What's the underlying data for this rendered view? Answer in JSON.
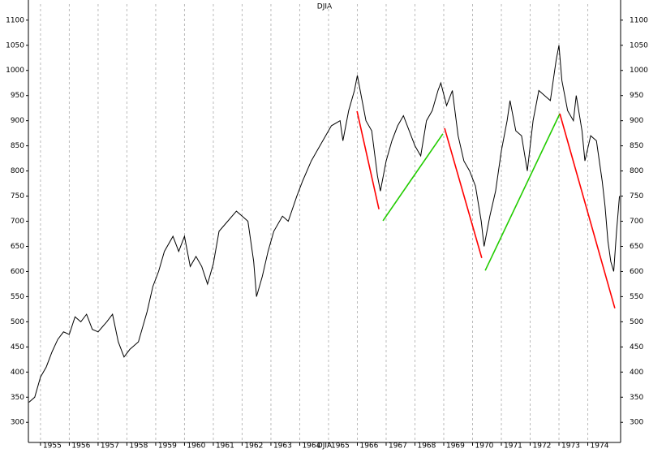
{
  "chart_data": {
    "type": "line",
    "title": "DJIA",
    "xlabel": "DJIA",
    "x": [
      1954.6,
      1954.8,
      1955.0,
      1955.2,
      1955.4,
      1955.6,
      1955.8,
      1956.0,
      1956.2,
      1956.4,
      1956.6,
      1956.8,
      1957.0,
      1957.3,
      1957.5,
      1957.7,
      1957.9,
      1958.1,
      1958.4,
      1958.7,
      1958.9,
      1959.1,
      1959.3,
      1959.6,
      1959.8,
      1960.0,
      1960.2,
      1960.4,
      1960.6,
      1960.8,
      1961.0,
      1961.2,
      1961.5,
      1961.8,
      1962.0,
      1962.2,
      1962.4,
      1962.5,
      1962.7,
      1962.9,
      1963.1,
      1963.4,
      1963.6,
      1963.9,
      1964.1,
      1964.4,
      1964.6,
      1964.9,
      1965.1,
      1965.4,
      1965.5,
      1965.7,
      1965.9,
      1966.0,
      1966.1,
      1966.3,
      1966.5,
      1966.7,
      1966.8,
      1967.0,
      1967.2,
      1967.4,
      1967.6,
      1967.8,
      1968.0,
      1968.2,
      1968.4,
      1968.6,
      1968.8,
      1968.9,
      1969.1,
      1969.3,
      1969.5,
      1969.7,
      1969.9,
      1970.1,
      1970.3,
      1970.4,
      1970.6,
      1970.8,
      1971.0,
      1971.2,
      1971.3,
      1971.5,
      1971.7,
      1971.9,
      1972.1,
      1972.3,
      1972.5,
      1972.7,
      1972.9,
      1973.0,
      1973.1,
      1973.3,
      1973.5,
      1973.6,
      1973.8,
      1973.9,
      1974.1,
      1974.3,
      1974.5,
      1974.6,
      1974.7,
      1974.8,
      1974.9,
      1975.0,
      1975.1
    ],
    "series": [
      {
        "name": "DJIA",
        "color": "#000000",
        "values": [
          340,
          350,
          390,
          410,
          440,
          465,
          480,
          475,
          510,
          500,
          515,
          485,
          480,
          500,
          515,
          460,
          430,
          445,
          460,
          520,
          570,
          600,
          640,
          670,
          640,
          670,
          610,
          630,
          610,
          575,
          615,
          680,
          700,
          720,
          710,
          700,
          620,
          550,
          590,
          640,
          680,
          710,
          700,
          750,
          780,
          820,
          840,
          870,
          890,
          900,
          860,
          920,
          960,
          990,
          960,
          900,
          880,
          790,
          760,
          820,
          860,
          890,
          910,
          880,
          850,
          830,
          900,
          920,
          960,
          975,
          930,
          960,
          870,
          820,
          800,
          770,
          700,
          650,
          710,
          760,
          840,
          900,
          940,
          880,
          870,
          800,
          900,
          960,
          950,
          940,
          1020,
          1050,
          980,
          920,
          900,
          950,
          880,
          820,
          870,
          860,
          780,
          730,
          660,
          620,
          600,
          680,
          750
        ]
      }
    ],
    "trend_lines": [
      {
        "color": "#ff0000",
        "x": [
          1965.99,
          1966.75
        ],
        "values": [
          919,
          724
        ]
      },
      {
        "color": "#22cc00",
        "x": [
          1966.89,
          1968.97
        ],
        "values": [
          701,
          874
        ]
      },
      {
        "color": "#ff0000",
        "x": [
          1969.03,
          1970.32
        ],
        "values": [
          885,
          627
        ]
      },
      {
        "color": "#22cc00",
        "x": [
          1970.44,
          1973.03
        ],
        "values": [
          602,
          914
        ]
      },
      {
        "color": "#ff0000",
        "x": [
          1973.03,
          1974.94
        ],
        "values": [
          914,
          527
        ]
      }
    ],
    "xlim": [
      1954.58,
      1975.14
    ],
    "xticks": [
      1955,
      1956,
      1957,
      1958,
      1959,
      1960,
      1961,
      1962,
      1963,
      1964,
      1965,
      1966,
      1967,
      1968,
      1969,
      1970,
      1971,
      1972,
      1973,
      1974
    ],
    "ylim": [
      260,
      1132
    ],
    "yticks": [
      300,
      350,
      400,
      450,
      500,
      550,
      600,
      650,
      700,
      750,
      800,
      850,
      900,
      950,
      1000,
      1050,
      1100
    ],
    "grid": true
  }
}
